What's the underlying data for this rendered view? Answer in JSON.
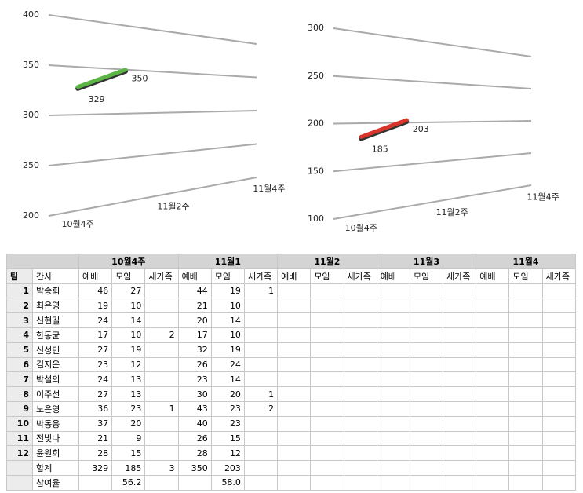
{
  "chart_data": [
    {
      "type": "line",
      "categories": [
        "10월4주",
        null,
        "11월2주",
        null,
        "11월4주"
      ],
      "series": [
        {
          "color": "#5cb646",
          "values": [
            329,
            350,
            null,
            null,
            null
          ]
        }
      ],
      "ylim": [
        200,
        400
      ],
      "yticks": [
        200,
        250,
        300,
        350,
        400
      ],
      "grid": true
    },
    {
      "type": "line",
      "categories": [
        "10월4주",
        null,
        "11월2주",
        null,
        "11월4주"
      ],
      "series": [
        {
          "color": "#d9342b",
          "values": [
            185,
            203,
            null,
            null,
            null
          ]
        }
      ],
      "ylim": [
        100,
        300
      ],
      "yticks": [
        100,
        150,
        200,
        250,
        300
      ],
      "grid": true
    }
  ],
  "table": {
    "groups": [
      "10월4주",
      "11월1",
      "11월2",
      "11월3",
      "11월4"
    ],
    "header": [
      "팀",
      "간사",
      "예배",
      "모임",
      "새가족",
      "예배",
      "모임",
      "새가족",
      "예배",
      "모임",
      "새가족",
      "예배",
      "모임",
      "새가족",
      "예배",
      "모임",
      "새가족"
    ],
    "rows": [
      [
        1,
        "박송희",
        46,
        27,
        null,
        44,
        19,
        1,
        null,
        null,
        null,
        null,
        null,
        null,
        null,
        null,
        null
      ],
      [
        2,
        "최은영",
        19,
        10,
        null,
        21,
        10,
        null,
        null,
        null,
        null,
        null,
        null,
        null,
        null,
        null,
        null
      ],
      [
        3,
        "신현길",
        24,
        14,
        null,
        20,
        14,
        null,
        null,
        null,
        null,
        null,
        null,
        null,
        null,
        null,
        null
      ],
      [
        4,
        "한동균",
        17,
        10,
        2,
        17,
        10,
        null,
        null,
        null,
        null,
        null,
        null,
        null,
        null,
        null,
        null
      ],
      [
        5,
        "신성민",
        27,
        19,
        null,
        32,
        19,
        null,
        null,
        null,
        null,
        null,
        null,
        null,
        null,
        null,
        null
      ],
      [
        6,
        "김지은",
        23,
        12,
        null,
        26,
        24,
        null,
        null,
        null,
        null,
        null,
        null,
        null,
        null,
        null,
        null
      ],
      [
        7,
        "박설의",
        24,
        13,
        null,
        23,
        14,
        null,
        null,
        null,
        null,
        null,
        null,
        null,
        null,
        null,
        null
      ],
      [
        8,
        "이주선",
        27,
        13,
        null,
        30,
        20,
        1,
        null,
        null,
        null,
        null,
        null,
        null,
        null,
        null,
        null
      ],
      [
        9,
        "노은영",
        36,
        23,
        1,
        43,
        23,
        2,
        null,
        null,
        null,
        null,
        null,
        null,
        null,
        null,
        null
      ],
      [
        10,
        "박동웅",
        37,
        20,
        null,
        40,
        23,
        null,
        null,
        null,
        null,
        null,
        null,
        null,
        null,
        null,
        null
      ],
      [
        11,
        "전빛나",
        21,
        9,
        null,
        26,
        15,
        null,
        null,
        null,
        null,
        null,
        null,
        null,
        null,
        null,
        null
      ],
      [
        12,
        "윤원희",
        28,
        15,
        null,
        28,
        12,
        null,
        null,
        null,
        null,
        null,
        null,
        null,
        null,
        null,
        null
      ],
      [
        null,
        "합계",
        329,
        185,
        3,
        350,
        203,
        null,
        null,
        null,
        null,
        null,
        null,
        null,
        null,
        null,
        null
      ],
      [
        null,
        "참여율",
        null,
        56.2,
        null,
        null,
        "58.0",
        null,
        null,
        null,
        null,
        null,
        null,
        null,
        null,
        null,
        null
      ]
    ]
  }
}
